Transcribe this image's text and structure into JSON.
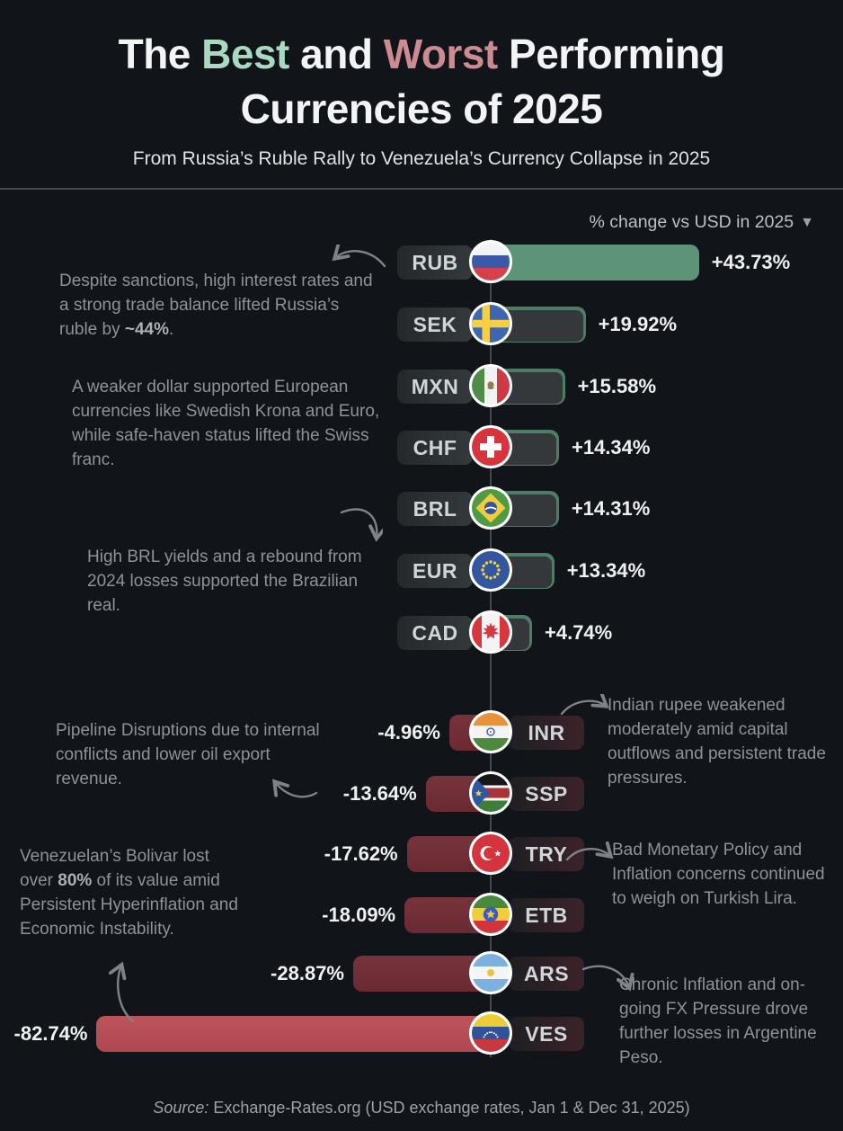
{
  "header": {
    "title": {
      "pre": "The ",
      "best": "Best",
      "mid": " and ",
      "worst": "Worst",
      "post": " Performing"
    },
    "title_line2": "Currencies of 2025",
    "subtitle": "From Russia’s Ruble Rally to Venezuela’s Currency Collapse in 2025"
  },
  "axis_header": {
    "label": "% change vs USD in 2025",
    "sort_icon": "▼"
  },
  "chart_data": {
    "type": "bar",
    "orientation": "horizontal",
    "title": "The Best and Worst Performing Currencies of 2025",
    "subtitle": "From Russia’s Ruble Rally to Venezuela’s Currency Collapse in 2025",
    "value_axis_label": "% change vs USD in 2025",
    "categories": [
      "RUB",
      "SEK",
      "MXN",
      "CHF",
      "BRL",
      "EUR",
      "CAD",
      "INR",
      "SSP",
      "TRY",
      "ETB",
      "ARS",
      "VES"
    ],
    "values": [
      43.73,
      19.92,
      15.58,
      14.34,
      14.31,
      13.34,
      4.74,
      -4.96,
      -13.64,
      -17.62,
      -18.09,
      -28.87,
      -82.74
    ],
    "value_labels": [
      "+43.73%",
      "+19.92%",
      "+15.58%",
      "+14.34%",
      "+14.31%",
      "+13.34%",
      "+4.74%",
      "-4.96%",
      "-13.64%",
      "-17.62%",
      "-18.09%",
      "-28.87%",
      "-82.74%"
    ],
    "xlim": [
      -90,
      50
    ],
    "grid": false,
    "legend": false,
    "positive_color": "#4e7d65",
    "positive_highlight_color": "#5d9377",
    "negative_color": "#6e2d35",
    "negative_highlight_color": "#b5505a"
  },
  "rows": [
    {
      "code": "RUB",
      "value_label": "+43.73%",
      "flag": "russia"
    },
    {
      "code": "SEK",
      "value_label": "+19.92%",
      "flag": "sweden"
    },
    {
      "code": "MXN",
      "value_label": "+15.58%",
      "flag": "mexico"
    },
    {
      "code": "CHF",
      "value_label": "+14.34%",
      "flag": "switzerland"
    },
    {
      "code": "BRL",
      "value_label": "+14.31%",
      "flag": "brazil"
    },
    {
      "code": "EUR",
      "value_label": "+13.34%",
      "flag": "european-union"
    },
    {
      "code": "CAD",
      "value_label": "+4.74%",
      "flag": "canada"
    },
    {
      "code": "INR",
      "value_label": "-4.96%",
      "flag": "india"
    },
    {
      "code": "SSP",
      "value_label": "-13.64%",
      "flag": "south-sudan"
    },
    {
      "code": "TRY",
      "value_label": "-17.62%",
      "flag": "turkey"
    },
    {
      "code": "ETB",
      "value_label": "-18.09%",
      "flag": "ethiopia"
    },
    {
      "code": "ARS",
      "value_label": "-28.87%",
      "flag": "argentina"
    },
    {
      "code": "VES",
      "value_label": "-82.74%",
      "flag": "venezuela"
    }
  ],
  "annotations": [
    {
      "pre": "Despite sanctions, high interest rates and a strong trade balance lifted Russia’s ruble by ",
      "bold": "~44%",
      "post": "."
    },
    {
      "pre": "A weaker dollar supported European currencies like Swedish Krona and Euro, while safe-haven status lifted the Swiss franc.",
      "bold": "",
      "post": ""
    },
    {
      "pre": "High BRL yields and a rebound from 2024 losses supported the Brazilian real.",
      "bold": "",
      "post": ""
    },
    {
      "pre": "Pipeline Disruptions due to internal conflicts and lower oil export revenue.",
      "bold": "",
      "post": ""
    },
    {
      "pre": "Venezuelan’s Bolivar lost over ",
      "bold": "80%",
      "post": " of its value amid Persistent Hyperinflation and Economic Instability."
    },
    {
      "pre": "Indian rupee weakened moderately amid capital outflows and persistent trade pressures.",
      "bold": "",
      "post": ""
    },
    {
      "pre": "Bad Monetary Policy and Inflation concerns continued to weigh on Turkish Lira.",
      "bold": "",
      "post": ""
    },
    {
      "pre": "Chronic Inflation and on-going FX Pressure drove further losses in Argentine Peso.",
      "bold": "",
      "post": ""
    }
  ],
  "source": {
    "prefix": "Source:",
    "text": " Exchange-Rates.org (USD exchange rates, Jan 1 & Dec 31, 2025)"
  },
  "colors": {
    "background": "#111419",
    "title_best": "#a9d9c0",
    "title_worst": "#cc8b92",
    "annotation_text": "#8d939a"
  }
}
